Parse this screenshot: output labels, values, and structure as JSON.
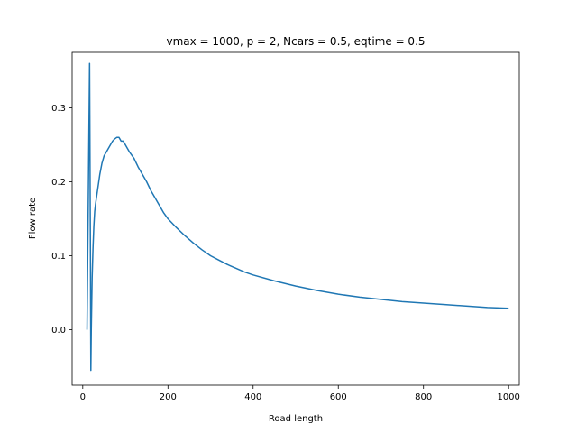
{
  "chart_data": {
    "type": "line",
    "title": "vmax = 1000, p = 2, Ncars = 0.5, eqtime = 0.5",
    "xlabel": "Road length",
    "ylabel": "Flow rate",
    "xlim": [
      -25,
      1025
    ],
    "ylim": [
      -0.075,
      0.375
    ],
    "x_ticks": [
      0,
      200,
      400,
      600,
      800,
      1000
    ],
    "y_ticks": [
      0.0,
      0.1,
      0.2,
      0.3
    ],
    "x_tick_labels": [
      "0",
      "200",
      "400",
      "600",
      "800",
      "1000"
    ],
    "y_tick_labels": [
      "0.0",
      "0.1",
      "0.2",
      "0.3"
    ],
    "grid": false,
    "legend": "none",
    "series": [
      {
        "color": "#1f77b4",
        "x": [
          10,
          13,
          16,
          18,
          19,
          20,
          22,
          24,
          26,
          28,
          30,
          35,
          40,
          45,
          50,
          55,
          60,
          65,
          70,
          75,
          80,
          85,
          90,
          95,
          100,
          110,
          120,
          130,
          140,
          150,
          160,
          170,
          180,
          190,
          200,
          220,
          240,
          260,
          280,
          300,
          320,
          340,
          360,
          380,
          400,
          450,
          500,
          550,
          600,
          650,
          700,
          750,
          800,
          850,
          900,
          950,
          1000
        ],
        "y": [
          0.0,
          0.18,
          0.36,
          0.1,
          -0.055,
          0.0,
          0.07,
          0.11,
          0.14,
          0.16,
          0.17,
          0.19,
          0.21,
          0.225,
          0.235,
          0.24,
          0.245,
          0.25,
          0.255,
          0.258,
          0.26,
          0.26,
          0.255,
          0.255,
          0.25,
          0.24,
          0.232,
          0.22,
          0.21,
          0.2,
          0.188,
          0.178,
          0.168,
          0.158,
          0.15,
          0.138,
          0.127,
          0.117,
          0.108,
          0.1,
          0.094,
          0.088,
          0.083,
          0.078,
          0.074,
          0.066,
          0.059,
          0.053,
          0.048,
          0.044,
          0.041,
          0.038,
          0.036,
          0.034,
          0.032,
          0.03,
          0.029
        ]
      }
    ]
  }
}
